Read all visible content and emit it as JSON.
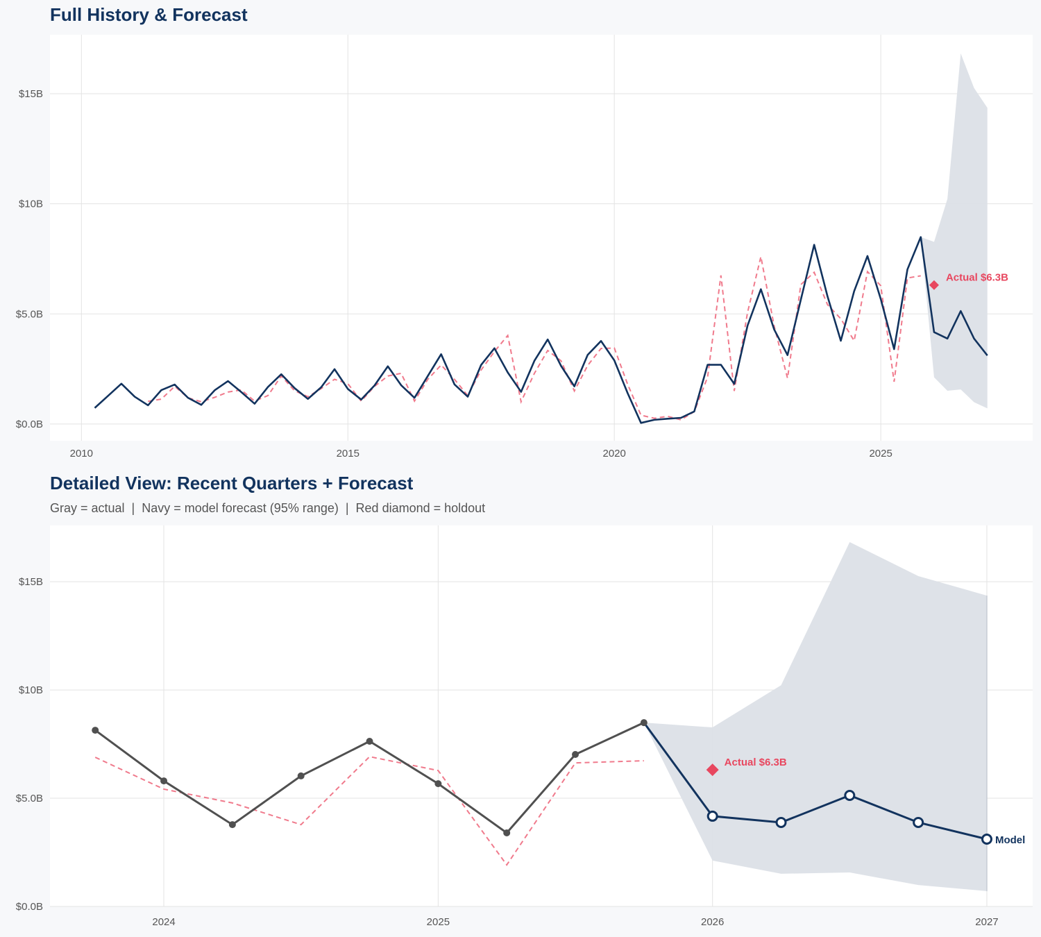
{
  "colors": {
    "navy": "#12335e",
    "gray": "#505050",
    "red": "#e8475f",
    "fitted": "#f07a8c",
    "band": "#dce0e7",
    "grid": "#e3e3e3",
    "panel": "#ffffff",
    "background": "#f7f8fa"
  },
  "chart_data": [
    {
      "type": "line",
      "title": "Full History & Forecast",
      "xlim": [
        2009.41,
        2027.85
      ],
      "ylim": [
        -0.76,
        17.68
      ],
      "grid": true,
      "x_ticks": [
        2010,
        2015,
        2020,
        2025
      ],
      "x_tick_labels": [
        "2010",
        "2015",
        "2020",
        "2025"
      ],
      "y_ticks": [
        0,
        5,
        10,
        15
      ],
      "y_tick_labels": [
        "$0.0B",
        "$5.0B",
        "$10B",
        "$15B"
      ],
      "actual": {
        "x_start": 2010.25,
        "x_step": 0.25,
        "values": [
          0.73,
          1.28,
          1.83,
          1.24,
          0.85,
          1.54,
          1.79,
          1.19,
          0.87,
          1.53,
          1.95,
          1.45,
          0.92,
          1.68,
          2.26,
          1.63,
          1.14,
          1.67,
          2.49,
          1.59,
          1.11,
          1.75,
          2.62,
          1.76,
          1.19,
          2.18,
          3.17,
          1.8,
          1.24,
          2.68,
          3.44,
          2.34,
          1.46,
          2.87,
          3.84,
          2.64,
          1.71,
          3.14,
          3.77,
          2.89,
          1.4,
          0.05,
          0.19,
          0.24,
          0.28,
          0.57,
          2.69,
          2.69,
          1.82,
          4.47,
          6.12,
          4.29,
          3.13,
          5.65,
          8.14,
          5.8,
          3.78,
          6.03,
          7.63,
          5.67,
          3.4,
          7.02,
          8.49
        ]
      },
      "fitted": {
        "x_start": 2011.25,
        "x_step": 0.25,
        "values": [
          1.03,
          1.13,
          1.71,
          1.19,
          1.01,
          1.21,
          1.45,
          1.55,
          1.04,
          1.29,
          2.18,
          1.51,
          1.24,
          1.61,
          2.03,
          1.83,
          1.04,
          1.71,
          2.18,
          2.3,
          1.04,
          2.03,
          2.68,
          2.03,
          1.29,
          2.45,
          3.29,
          4.02,
          1.01,
          2.3,
          3.34,
          2.87,
          1.5,
          2.66,
          3.43,
          3.45,
          1.8,
          0.4,
          0.26,
          0.35,
          0.19,
          0.56,
          2.13,
          6.75,
          1.5,
          5.07,
          7.6,
          4.44,
          2.08,
          6.33,
          6.89,
          5.42,
          4.78,
          3.78,
          6.92,
          6.28,
          1.92,
          6.63,
          6.73
        ]
      },
      "forecast": {
        "x": [
          2025.75,
          2026.0,
          2026.25,
          2026.5,
          2026.75,
          2027.0
        ],
        "values": [
          8.49,
          4.17,
          3.88,
          5.13,
          3.88,
          3.11
        ],
        "lower": [
          8.49,
          2.12,
          1.51,
          1.57,
          0.99,
          0.71
        ],
        "upper": [
          8.49,
          8.27,
          10.22,
          16.83,
          15.26,
          14.36
        ]
      },
      "holdout": {
        "x": 2026.0,
        "value": 6.31,
        "label": "Actual $6.3B"
      }
    },
    {
      "type": "line",
      "title": "Detailed View: Recent Quarters + Forecast",
      "subtitle": "Gray = actual  |  Navy = model forecast (95% range)  |  Red diamond = holdout",
      "xlim": [
        2023.585,
        2027.167
      ],
      "ylim": [
        0,
        17.6
      ],
      "grid": true,
      "x_ticks": [
        2024,
        2025,
        2026,
        2027
      ],
      "x_tick_labels": [
        "2024",
        "2025",
        "2026",
        "2027"
      ],
      "y_ticks": [
        0,
        5,
        10,
        15
      ],
      "y_tick_labels": [
        "$0.0B",
        "$5.0B",
        "$10B",
        "$15B"
      ],
      "actual": {
        "x_start": 2023.75,
        "x_step": 0.25,
        "values": [
          8.14,
          5.8,
          3.78,
          6.03,
          7.63,
          5.67,
          3.4,
          7.02,
          8.49
        ]
      },
      "fitted": {
        "x_start": 2023.75,
        "x_step": 0.25,
        "values": [
          6.89,
          5.42,
          4.78,
          3.78,
          6.92,
          6.28,
          1.92,
          6.63,
          6.73
        ]
      },
      "forecast": {
        "x": [
          2025.75,
          2026.0,
          2026.25,
          2026.5,
          2026.75,
          2027.0
        ],
        "values": [
          8.49,
          4.17,
          3.88,
          5.13,
          3.88,
          3.11
        ],
        "lower": [
          8.49,
          2.12,
          1.51,
          1.57,
          0.99,
          0.71
        ],
        "upper": [
          8.49,
          8.27,
          10.22,
          16.83,
          15.26,
          14.36
        ],
        "label": "Model"
      },
      "holdout": {
        "x": 2026.0,
        "value": 6.31,
        "label": "Actual $6.3B"
      }
    }
  ]
}
